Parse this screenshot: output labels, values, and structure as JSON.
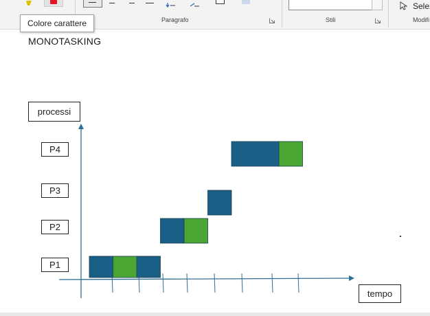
{
  "ribbon": {
    "groups": [
      {
        "id": "paragraph",
        "label": "Paragrafo"
      },
      {
        "id": "styles",
        "label": "Stili"
      },
      {
        "id": "editing",
        "label": "Modifi"
      }
    ],
    "select_label": "Selez",
    "font_color_tooltip": "Colore carattere"
  },
  "document": {
    "title": "MONOTASKING",
    "y_axis_label": "processi",
    "x_axis_label": "tempo",
    "processes": [
      "P4",
      "P3",
      "P2",
      "P1"
    ]
  },
  "colors": {
    "running": "#1a5f86",
    "io": "#4aa532",
    "axis": "#2f6f95",
    "font_color_swatch": "#e81123",
    "highlight_swatch": "#f5e400"
  },
  "chart_data": {
    "type": "gantt",
    "title": "MONOTASKING",
    "xlabel": "tempo",
    "ylabel": "processi",
    "categories": [
      "P1",
      "P2",
      "P3",
      "P4"
    ],
    "series": [
      {
        "name": "",
        "color": "#1a5f86",
        "values": [
          {
            "process": "P1",
            "start": 0,
            "end": 1
          },
          {
            "process": "P1",
            "start": 2,
            "end": 3
          },
          {
            "process": "P2",
            "start": 3,
            "end": 4
          },
          {
            "process": "P3",
            "start": 5,
            "end": 6
          },
          {
            "process": "P4",
            "start": 6,
            "end": 8
          }
        ]
      },
      {
        "name": "",
        "color": "#4aa532",
        "values": [
          {
            "process": "P1",
            "start": 1,
            "end": 2
          },
          {
            "process": "P2",
            "start": 4,
            "end": 5
          },
          {
            "process": "P4",
            "start": 8,
            "end": 9
          }
        ]
      }
    ]
  }
}
